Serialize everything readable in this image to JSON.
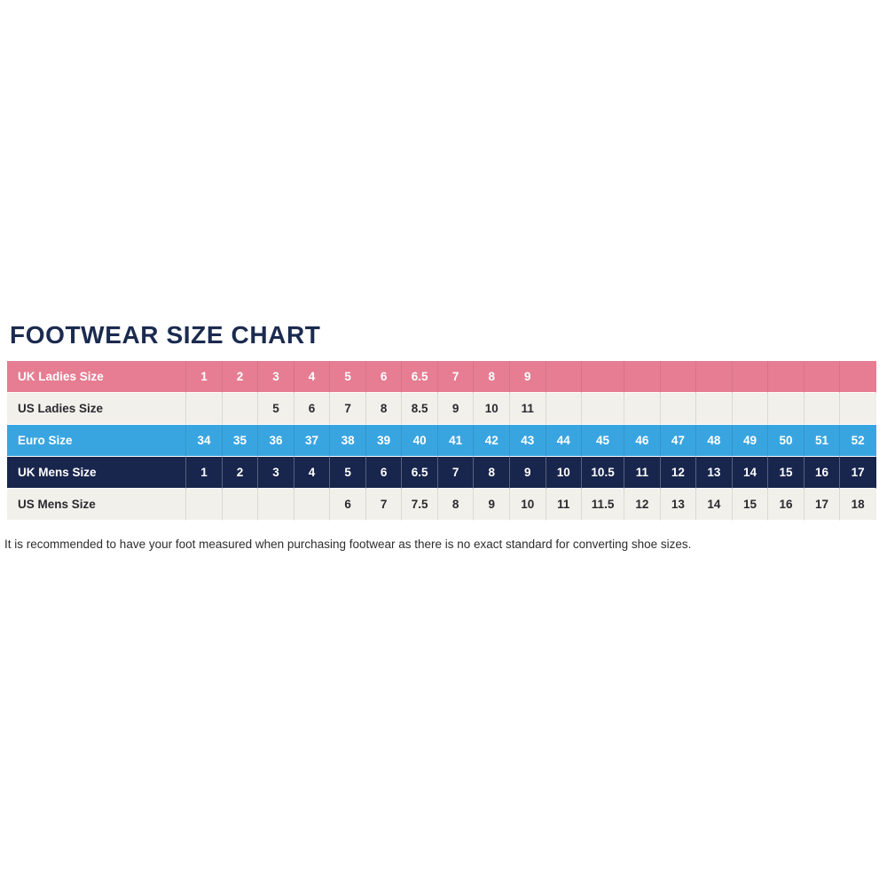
{
  "page": {
    "title": "FOOTWEAR SIZE CHART",
    "footnote": "It is recommended to have your foot measured when purchasing footwear as there is no exact standard for converting shoe sizes."
  },
  "colors": {
    "title_navy": "#1b2a4f",
    "row_pink": "#e67d92",
    "row_blue": "#39a5e0",
    "row_navy": "#18254c",
    "row_light": "#f1f0ea",
    "text_dark": "#2a2a30",
    "text_white": "#ffffff"
  },
  "chart_data": {
    "type": "table",
    "title": "FOOTWEAR SIZE CHART",
    "columns": 19,
    "wide_column_index": 11,
    "rows": [
      {
        "label": "UK Ladies Size",
        "style": "pink",
        "values": [
          "1",
          "2",
          "3",
          "4",
          "5",
          "6",
          "6.5",
          "7",
          "8",
          "9",
          "",
          "",
          "",
          "",
          "",
          "",
          "",
          "",
          ""
        ]
      },
      {
        "label": "US Ladies Size",
        "style": "light",
        "values": [
          "",
          "",
          "5",
          "6",
          "7",
          "8",
          "8.5",
          "9",
          "10",
          "11",
          "",
          "",
          "",
          "",
          "",
          "",
          "",
          "",
          ""
        ]
      },
      {
        "label": "Euro Size",
        "style": "blue",
        "values": [
          "34",
          "35",
          "36",
          "37",
          "38",
          "39",
          "40",
          "41",
          "42",
          "43",
          "44",
          "45",
          "46",
          "47",
          "48",
          "49",
          "50",
          "51",
          "52"
        ]
      },
      {
        "label": "UK Mens Size",
        "style": "navy",
        "values": [
          "1",
          "2",
          "3",
          "4",
          "5",
          "6",
          "6.5",
          "7",
          "8",
          "9",
          "10",
          "10.5",
          "11",
          "12",
          "13",
          "14",
          "15",
          "16",
          "17"
        ]
      },
      {
        "label": "US Mens Size",
        "style": "light",
        "values": [
          "",
          "",
          "",
          "",
          "6",
          "7",
          "7.5",
          "8",
          "9",
          "10",
          "11",
          "11.5",
          "12",
          "13",
          "14",
          "15",
          "16",
          "17",
          "18"
        ]
      }
    ]
  }
}
